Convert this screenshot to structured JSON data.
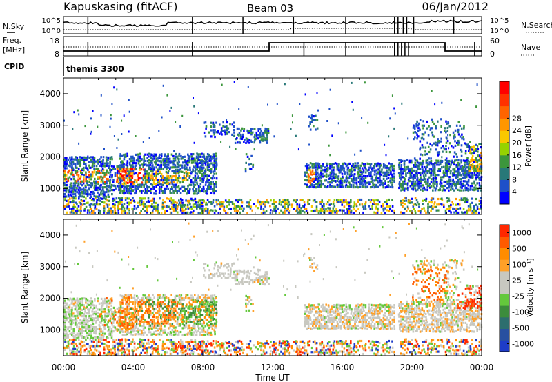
{
  "header": {
    "station": "Kapuskasing (fitACF)",
    "beam": "Beam 03",
    "date": "06/Jan/2012"
  },
  "noise_panel": {
    "left_label": "N.Sky",
    "right_label": "N.Search",
    "left_ticks": [
      "10^5",
      "10^0"
    ],
    "right_ticks": [
      "10^5",
      "10^0"
    ]
  },
  "freq_panel": {
    "left_label_line1": "Freq.",
    "left_label_line2": "[MHz]",
    "left_ticks": [
      "18",
      "8"
    ],
    "right_label": "Nave",
    "right_ticks": [
      "60",
      "0"
    ]
  },
  "cpid_panel": {
    "label": "CPID",
    "program": "themis 3300"
  },
  "x_axis": {
    "label": "Time UT",
    "ticks": [
      "00:00",
      "04:00",
      "08:00",
      "12:00",
      "16:00",
      "20:00",
      "00:00"
    ]
  },
  "chart_data": [
    {
      "type": "heatmap",
      "name": "power",
      "ylabel": "Slant Range [km]",
      "yticks": [
        "1000",
        "2000",
        "3000",
        "4000"
      ],
      "ylim": [
        180,
        4500
      ],
      "xlim_hours": [
        0,
        24
      ],
      "colorbar_label": "Power [dB]",
      "colorbar_ticks": [
        "4",
        "8",
        "12",
        "16",
        "20",
        "24",
        "28"
      ],
      "colorbar_colors": [
        "#0000ff",
        "#1e50c8",
        "#287878",
        "#3c963c",
        "#96d200",
        "#fac800",
        "#ff9600",
        "#ff6400",
        "#ff3200",
        "#ff0000"
      ]
    },
    {
      "type": "heatmap",
      "name": "velocity",
      "ylabel": "Slant Range [km]",
      "yticks": [
        "1000",
        "2000",
        "3000",
        "4000"
      ],
      "ylim": [
        180,
        4500
      ],
      "xlim_hours": [
        0,
        24
      ],
      "colorbar_label": "Velocity [m s⁻¹]",
      "colorbar_ticks": [
        "1000",
        "500",
        "100",
        "25",
        "-25",
        "-100",
        "-500",
        "-1000"
      ],
      "colorbar_colors": [
        "#1e3cc8",
        "#2850a0",
        "#2d6e6e",
        "#3c8c3c",
        "#64c83c",
        "#c8c8c0",
        "#c8c8c0",
        "#ffa028",
        "#ff8c00",
        "#ff5a00",
        "#ff2800"
      ]
    }
  ]
}
